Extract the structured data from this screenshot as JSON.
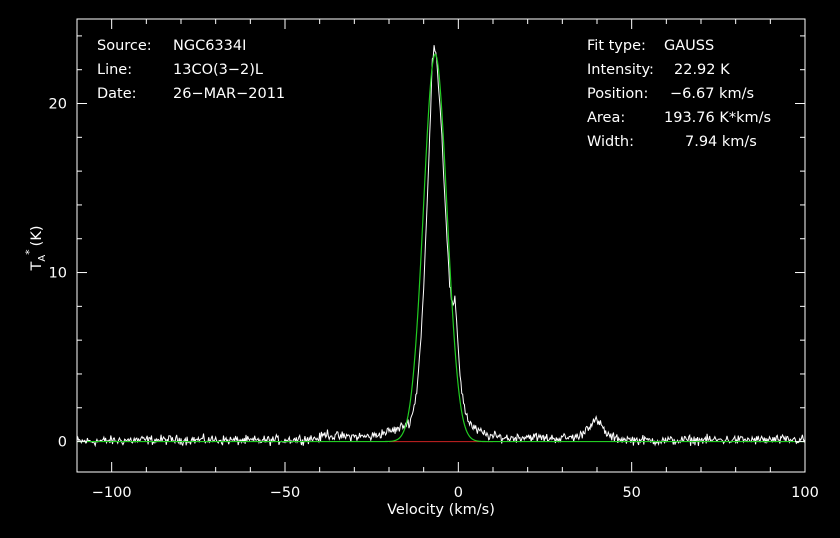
{
  "info_left": {
    "source_label": "Source:",
    "source_value": "NGC6334I",
    "line_label": "Line:",
    "line_value": "13CO(3-2)L",
    "date_label": "Date:",
    "date_value": "26-MAR-2011"
  },
  "info_right": {
    "fit_type_label": "Fit type:",
    "fit_type_value": "GAUSS",
    "intensity_label": "Intensity:",
    "intensity_value": "22.92 K",
    "position_label": "Position:",
    "position_value": "-6.67 km/s",
    "area_label": "Area:",
    "area_value": "193.76 K*km/s",
    "width_label": "Width:",
    "width_value": "7.94 km/s"
  },
  "chart_data": {
    "type": "line",
    "xlabel": "Velocity (km/s)",
    "ylabel_main": "T",
    "ylabel_sub": "A",
    "ylabel_sup": "*",
    "ylabel_unit": "(K)",
    "xlim": [
      -110,
      100
    ],
    "ylim": [
      -1.8,
      25
    ],
    "xticks": [
      -100,
      -50,
      0,
      50,
      100
    ],
    "yticks": [
      0,
      10,
      20
    ],
    "grid": false,
    "colors": {
      "spectrum": "#ffffff",
      "fit": "#22cc22",
      "baseline": "#cc2222",
      "axes": "#ffffff"
    },
    "fit": {
      "peak": 22.92,
      "center": -6.67,
      "fwhm": 7.94
    },
    "series": [
      {
        "role": "spectrum",
        "x": [
          -110,
          -100,
          -90,
          -80,
          -70,
          -60,
          -50,
          -40,
          -38,
          -36,
          -30,
          -25,
          -22,
          -20,
          -18,
          -16,
          -15,
          -14,
          -13,
          -12,
          -11,
          -10,
          -9,
          -8,
          -7.5,
          -7,
          -6.5,
          -6,
          -5,
          -4,
          -3,
          -2.5,
          -2,
          -1.5,
          -1,
          -0.5,
          0,
          0.5,
          1,
          2,
          3,
          4,
          5,
          6,
          8,
          10,
          15,
          20,
          25,
          30,
          35,
          37,
          38,
          39,
          40,
          41,
          42,
          43,
          45,
          50,
          60,
          70,
          80,
          90,
          100
        ],
        "y": [
          0,
          0.05,
          0.1,
          0.1,
          0.1,
          0.05,
          0.1,
          0.2,
          0.5,
          0.3,
          0.3,
          0.3,
          0.5,
          0.6,
          0.7,
          0.9,
          1.0,
          1.2,
          1.8,
          3.0,
          5.5,
          9.0,
          14.0,
          19.5,
          22.5,
          23.6,
          23.0,
          22.0,
          19.0,
          15.0,
          11.0,
          9.3,
          8.4,
          8.0,
          8.3,
          7.2,
          5.5,
          4.0,
          3.0,
          1.8,
          1.2,
          0.9,
          0.7,
          0.6,
          0.4,
          0.3,
          0.2,
          0.3,
          0.2,
          0.2,
          0.3,
          0.8,
          1.0,
          1.2,
          1.2,
          1.0,
          0.7,
          0.4,
          0.2,
          0.1,
          0.05,
          0.1,
          0.1,
          0.1,
          0.1
        ]
      }
    ]
  }
}
